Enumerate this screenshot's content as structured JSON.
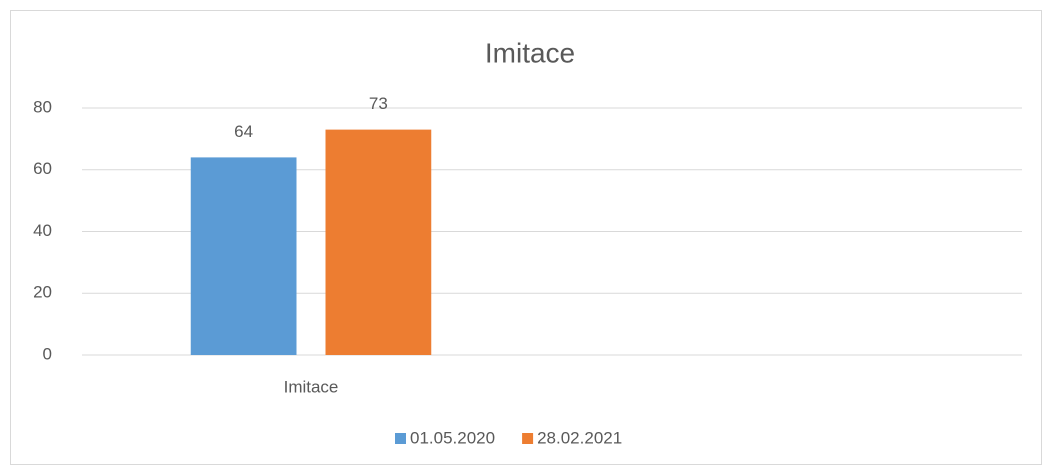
{
  "chart_data": {
    "type": "bar",
    "title": "Imitace",
    "categories": [
      "Imitace",
      null
    ],
    "series": [
      {
        "name": "01.05.2020",
        "color": "#5b9bd5",
        "values": [
          64,
          null
        ]
      },
      {
        "name": "28.02.2021",
        "color": "#ed7d31",
        "values": [
          73,
          null
        ]
      }
    ],
    "ylim": [
      0,
      80
    ],
    "yticks": [
      0,
      20,
      40,
      60,
      80
    ],
    "grid": true,
    "legend": "bottom"
  }
}
